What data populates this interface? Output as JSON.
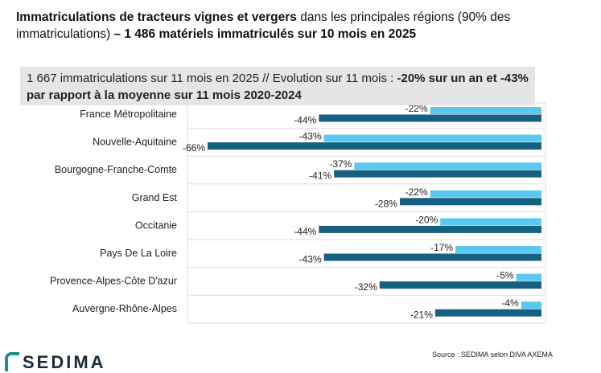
{
  "title": {
    "bold_part": "Immatriculations de tracteurs vignes et vergers",
    "normal_part": " dans les principales régions (90% des immatriculations) ",
    "bold_suffix": "– 1 486 matériels immatriculés sur 10 mois en 2025"
  },
  "callout": {
    "normal": "1 667 immatriculations sur 11 mois en 2025 // Evolution sur 11 mois : ",
    "bold": "-20% sur un an et -43% par rapport à la moyenne sur 11 mois 2020-2024"
  },
  "source": "Source : SEDIMA selon DIVA AXEMA",
  "logo": "SEDIMA",
  "chart_data": {
    "type": "bar",
    "orientation": "horizontal",
    "categories": [
      "France Métropolitaine",
      "Nouvelle-Aquitaine",
      "Bourgogne-Franche-Comte",
      "Grand Est",
      "Occitanie",
      "Pays De La Loire",
      "Provence-Alpes-Côte D'azur",
      "Auvergne-Rhône-Alpes"
    ],
    "series": [
      {
        "values": [
          -22,
          -43,
          -37,
          -22,
          -20,
          -17,
          -5,
          -4
        ],
        "color": "#5bc8f0"
      },
      {
        "values": [
          -44,
          -66,
          -41,
          -28,
          -44,
          -43,
          -32,
          -21
        ],
        "color": "#17607f"
      }
    ],
    "value_suffix": "%",
    "xlim": [
      -70,
      0
    ],
    "grid": true
  }
}
